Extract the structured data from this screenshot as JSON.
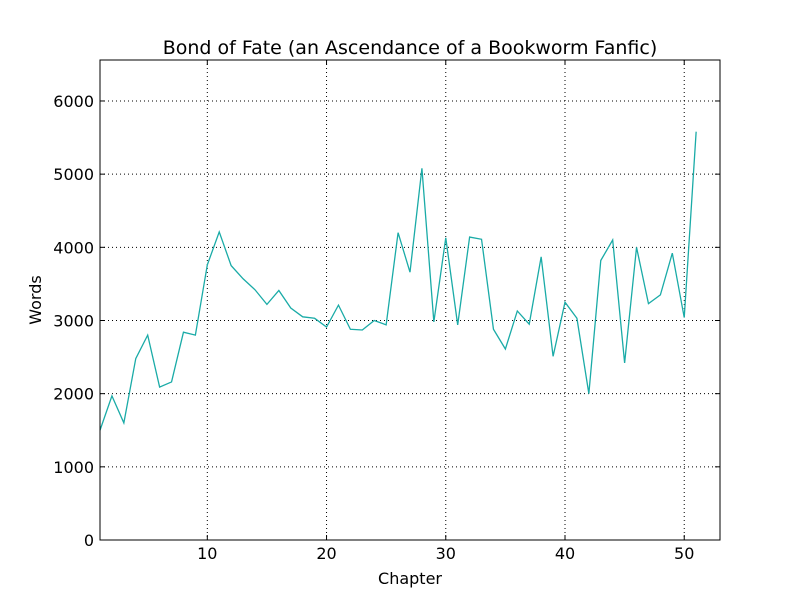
{
  "chart_data": {
    "type": "line",
    "title": "Bond of Fate (an Ascendance of a Bookworm Fanfic)",
    "xlabel": "Chapter",
    "ylabel": "Words",
    "xlim": [
      1,
      53
    ],
    "ylim": [
      0,
      6560
    ],
    "xticks": [
      10,
      20,
      30,
      40,
      50
    ],
    "yticks": [
      0,
      1000,
      2000,
      3000,
      4000,
      5000,
      6000
    ],
    "grid": true,
    "line_color": "#1aaba7",
    "series": [
      {
        "x": [
          1,
          2,
          3,
          4,
          5,
          6,
          7,
          8,
          9,
          10,
          11,
          12,
          13,
          14,
          15,
          16,
          17,
          18,
          19,
          20,
          21,
          22,
          23,
          24,
          25,
          26,
          27,
          28,
          29,
          30,
          31,
          32,
          33,
          34,
          35,
          36,
          37,
          38,
          39,
          40,
          41,
          42,
          43,
          44,
          45,
          46,
          47,
          48,
          49,
          50,
          51
        ],
        "values": [
          1500,
          1970,
          1600,
          2480,
          2800,
          2090,
          2160,
          2840,
          2800,
          3760,
          4210,
          3750,
          3570,
          3420,
          3220,
          3410,
          3170,
          3050,
          3030,
          2910,
          3210,
          2880,
          2870,
          3000,
          2940,
          4200,
          3660,
          5080,
          2980,
          4130,
          2940,
          4140,
          4110,
          2880,
          2610,
          3130,
          2950,
          3870,
          2510,
          3250,
          3030,
          2000,
          3820,
          4100,
          2420,
          4000,
          3230,
          3350,
          3920,
          3040,
          5580
        ]
      }
    ]
  }
}
